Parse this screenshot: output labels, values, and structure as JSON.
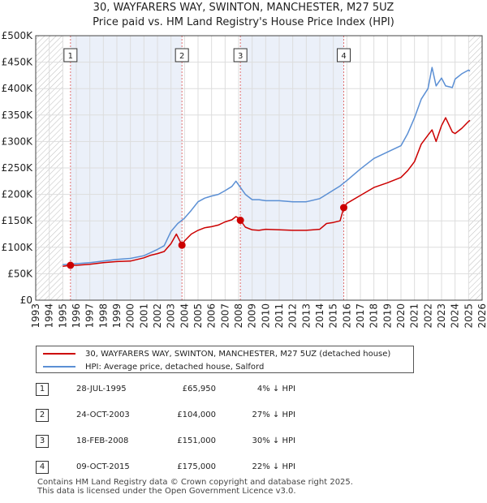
{
  "title_line1": "30, WAYFARERS WAY, SWINTON, MANCHESTER, M27 5UZ",
  "title_line2": "Price paid vs. HM Land Registry's House Price Index (HPI)",
  "chart_data": {
    "type": "line",
    "title": "30, WAYFARERS WAY, SWINTON, MANCHESTER, M27 5UZ - Price paid vs. HM Land Registry's House Price Index (HPI)",
    "xlabel": "",
    "ylabel": "",
    "xlim": [
      1993,
      2026
    ],
    "ylim": [
      0,
      500000
    ],
    "grid": true,
    "x_ticks": [
      "1993",
      "1994",
      "1995",
      "1996",
      "1997",
      "1998",
      "1999",
      "2000",
      "2001",
      "2002",
      "2003",
      "2004",
      "2005",
      "2006",
      "2007",
      "2008",
      "2009",
      "2010",
      "2011",
      "2012",
      "2013",
      "2014",
      "2015",
      "2016",
      "2017",
      "2018",
      "2019",
      "2020",
      "2021",
      "2022",
      "2023",
      "2024",
      "2025",
      "2026"
    ],
    "y_ticks": [
      {
        "value": 0,
        "label": "£0"
      },
      {
        "value": 50000,
        "label": "£50K"
      },
      {
        "value": 100000,
        "label": "£100K"
      },
      {
        "value": 150000,
        "label": "£150K"
      },
      {
        "value": 200000,
        "label": "£200K"
      },
      {
        "value": 250000,
        "label": "£250K"
      },
      {
        "value": 300000,
        "label": "£300K"
      },
      {
        "value": 350000,
        "label": "£350K"
      },
      {
        "value": 400000,
        "label": "£400K"
      },
      {
        "value": 450000,
        "label": "£450K"
      },
      {
        "value": 500000,
        "label": "£500K"
      }
    ],
    "hatched_ranges": [
      [
        1993,
        1995.0
      ],
      [
        2025.0,
        2026
      ]
    ],
    "shaded_ranges": [
      [
        1995.57,
        2003.81
      ],
      [
        2008.13,
        2015.77
      ]
    ],
    "series": [
      {
        "name": "30, WAYFARERS WAY, SWINTON, MANCHESTER, M27 5UZ (detached house)",
        "color": "#cc0000",
        "x": [
          1995.0,
          1995.57,
          1996,
          1997,
          1998,
          1999,
          2000,
          2001,
          2001.5,
          2002,
          2002.5,
          2003,
          2003.4,
          2003.81,
          2004,
          2004.5,
          2005,
          2005.5,
          2006,
          2006.5,
          2007,
          2007.5,
          2007.8,
          2008.0,
          2008.13,
          2008.5,
          2009,
          2009.5,
          2010,
          2011,
          2012,
          2013,
          2014,
          2014.5,
          2015,
          2015.5,
          2015.77,
          2016,
          2017,
          2018,
          2019,
          2020,
          2020.5,
          2021,
          2021.5,
          2022,
          2022.3,
          2022.6,
          2023,
          2023.3,
          2023.8,
          2024,
          2024.5,
          2025,
          2025.1
        ],
        "y": [
          64000,
          65950,
          66000,
          68000,
          71000,
          73000,
          74000,
          80000,
          85000,
          88000,
          92000,
          107000,
          125000,
          104000,
          112000,
          125000,
          132000,
          137000,
          139000,
          142000,
          148000,
          152000,
          158000,
          155000,
          151000,
          138000,
          133000,
          132000,
          134000,
          133000,
          132000,
          132000,
          134000,
          145000,
          147000,
          150000,
          175000,
          183000,
          198000,
          213000,
          222000,
          232000,
          245000,
          262000,
          295000,
          312000,
          322000,
          300000,
          330000,
          345000,
          318000,
          315000,
          325000,
          338000,
          340000
        ]
      },
      {
        "name": "HPI: Average price, detached house, Salford",
        "color": "#5b8fd4",
        "x": [
          1995.0,
          1996,
          1997,
          1998,
          1999,
          2000,
          2001,
          2001.5,
          2002,
          2002.5,
          2003,
          2003.5,
          2004,
          2004.5,
          2005,
          2005.5,
          2006,
          2006.5,
          2007,
          2007.5,
          2007.8,
          2008.0,
          2008.5,
          2009,
          2009.5,
          2010,
          2011,
          2012,
          2013,
          2014,
          2014.5,
          2015,
          2015.5,
          2016,
          2017,
          2018,
          2019,
          2020,
          2020.5,
          2021,
          2021.5,
          2022,
          2022.3,
          2022.6,
          2023,
          2023.3,
          2023.8,
          2024,
          2024.5,
          2025,
          2025.1
        ],
        "y": [
          67000,
          69000,
          71000,
          74000,
          77000,
          79000,
          84000,
          90000,
          96000,
          103000,
          130000,
          145000,
          155000,
          170000,
          186000,
          193000,
          197000,
          200000,
          207000,
          215000,
          225000,
          218000,
          200000,
          190000,
          190000,
          188000,
          188000,
          186000,
          186000,
          192000,
          200000,
          208000,
          216000,
          226000,
          248000,
          268000,
          280000,
          292000,
          315000,
          345000,
          380000,
          400000,
          440000,
          405000,
          420000,
          405000,
          402000,
          418000,
          428000,
          435000,
          433000
        ]
      }
    ],
    "markers": [
      {
        "label": "1",
        "x": 1995.57,
        "y": 65950
      },
      {
        "label": "2",
        "x": 2003.81,
        "y": 104000
      },
      {
        "label": "3",
        "x": 2008.13,
        "y": 151000
      },
      {
        "label": "4",
        "x": 2015.77,
        "y": 175000
      }
    ]
  },
  "legend": {
    "items": [
      {
        "label": "30, WAYFARERS WAY, SWINTON, MANCHESTER, M27 5UZ (detached house)",
        "color": "#cc0000"
      },
      {
        "label": "HPI: Average price, detached house, Salford",
        "color": "#5b8fd4"
      }
    ]
  },
  "transactions": [
    {
      "num": "1",
      "date": "28-JUL-1995",
      "price": "£65,950",
      "hpi": "4% ↓ HPI"
    },
    {
      "num": "2",
      "date": "24-OCT-2003",
      "price": "£104,000",
      "hpi": "27% ↓ HPI"
    },
    {
      "num": "3",
      "date": "18-FEB-2008",
      "price": "£151,000",
      "hpi": "30% ↓ HPI"
    },
    {
      "num": "4",
      "date": "09-OCT-2015",
      "price": "£175,000",
      "hpi": "22% ↓ HPI"
    }
  ],
  "footer": {
    "line1": "Contains HM Land Registry data © Crown copyright and database right 2025.",
    "line2": "This data is licensed under the Open Government Licence v3.0."
  }
}
